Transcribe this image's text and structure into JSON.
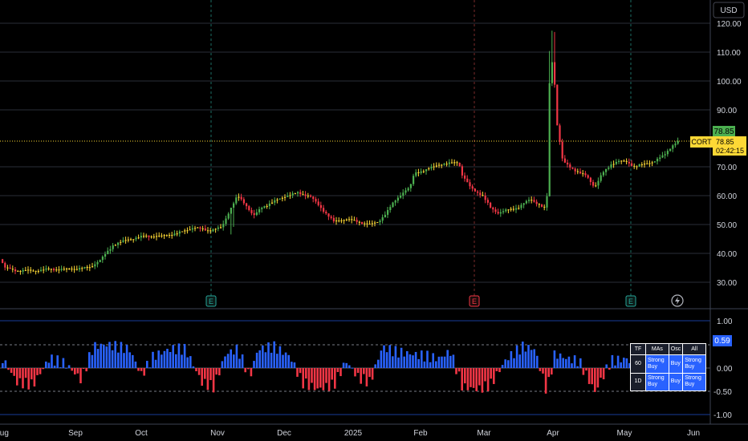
{
  "currency": "USD",
  "symbol": "CORT",
  "last_price": "78.85",
  "countdown": "02:42:15",
  "indicator_value": "0.59",
  "colors": {
    "up": "#4caf50",
    "down": "#f23645",
    "neutral": "#fdd835",
    "osc_up": "#2962ff",
    "osc_down": "#f23645",
    "price_tag": "#fdd835",
    "last_tag": "#4caf50",
    "earnings": "#26a69a",
    "earnings_neg": "#f23645"
  },
  "price_axis_labels": [
    "120.00",
    "110.00",
    "100.00",
    "90.00",
    "80.00",
    "70.00",
    "60.00",
    "50.00",
    "40.00",
    "30.00"
  ],
  "osc_axis_labels": [
    "1.00",
    "0.50",
    "0.00",
    "-0.50",
    "-1.00"
  ],
  "time_axis_labels": [
    "Aug",
    "Sep",
    "Oct",
    "Nov",
    "Dec",
    "2025",
    "Feb",
    "Mar",
    "Apr",
    "May",
    "Jun"
  ],
  "earnings_markers": [
    {
      "label": "E",
      "month": "Nov",
      "tone": "pos"
    },
    {
      "label": "E",
      "month": "Mar",
      "tone": "neg"
    },
    {
      "label": "E",
      "month": "May",
      "tone": "pos"
    }
  ],
  "flash_icon": "lightning-icon",
  "rating_table": {
    "headers": [
      "TF",
      "MAs",
      "Osc",
      "All"
    ],
    "rows": [
      {
        "tf": "60",
        "mas": "Strong Buy",
        "osc": "Buy",
        "all": "Strong Buy"
      },
      {
        "tf": "1D",
        "mas": "Strong Buy",
        "osc": "Buy",
        "all": "Strong Buy"
      }
    ]
  },
  "chart_data": {
    "type": "candlestick",
    "title": "",
    "ylim": [
      23,
      125
    ],
    "osc_ylim": [
      -1.2,
      1.15
    ],
    "price_path": [
      [
        0,
        38
      ],
      [
        5,
        35
      ],
      [
        20,
        34
      ],
      [
        40,
        34
      ],
      [
        60,
        34.5
      ],
      [
        80,
        34.5
      ],
      [
        110,
        35
      ],
      [
        125,
        38
      ],
      [
        140,
        43
      ],
      [
        160,
        45
      ],
      [
        180,
        46
      ],
      [
        200,
        46
      ],
      [
        220,
        47
      ],
      [
        240,
        49
      ],
      [
        260,
        48
      ],
      [
        275,
        49
      ],
      [
        285,
        55
      ],
      [
        295,
        60
      ],
      [
        305,
        57
      ],
      [
        315,
        53
      ],
      [
        325,
        56
      ],
      [
        340,
        58
      ],
      [
        355,
        60
      ],
      [
        370,
        61
      ],
      [
        385,
        60
      ],
      [
        395,
        57
      ],
      [
        405,
        54
      ],
      [
        415,
        51
      ],
      [
        430,
        52
      ],
      [
        445,
        51
      ],
      [
        460,
        50
      ],
      [
        470,
        51
      ],
      [
        480,
        54
      ],
      [
        490,
        58
      ],
      [
        500,
        61
      ],
      [
        510,
        63
      ],
      [
        515,
        68
      ],
      [
        530,
        69
      ],
      [
        545,
        71
      ],
      [
        555,
        71
      ],
      [
        570,
        72
      ],
      [
        575,
        67
      ],
      [
        585,
        63
      ],
      [
        600,
        60
      ],
      [
        610,
        56
      ],
      [
        620,
        54
      ],
      [
        630,
        55
      ],
      [
        645,
        56
      ],
      [
        660,
        59
      ],
      [
        670,
        57
      ],
      [
        680,
        55
      ],
      [
        684,
        104
      ],
      [
        688,
        108
      ],
      [
        693,
        85
      ],
      [
        700,
        72
      ],
      [
        710,
        70
      ],
      [
        720,
        68
      ],
      [
        730,
        67
      ],
      [
        740,
        63
      ],
      [
        750,
        68
      ],
      [
        760,
        71
      ],
      [
        770,
        72
      ],
      [
        780,
        72
      ],
      [
        790,
        70
      ],
      [
        800,
        71
      ],
      [
        815,
        72
      ],
      [
        825,
        74
      ],
      [
        835,
        77
      ],
      [
        844,
        78.85
      ]
    ],
    "osc_path": [
      [
        0,
        0.25
      ],
      [
        20,
        -0.3
      ],
      [
        40,
        -0.35
      ],
      [
        60,
        0.2
      ],
      [
        80,
        0.1
      ],
      [
        100,
        -0.25
      ],
      [
        115,
        0.45
      ],
      [
        130,
        0.5
      ],
      [
        160,
        0.4
      ],
      [
        175,
        -0.15
      ],
      [
        190,
        0.25
      ],
      [
        210,
        0.4
      ],
      [
        230,
        0.4
      ],
      [
        250,
        -0.3
      ],
      [
        265,
        -0.4
      ],
      [
        280,
        0.3
      ],
      [
        295,
        0.4
      ],
      [
        310,
        -0.2
      ],
      [
        320,
        0.4
      ],
      [
        340,
        0.45
      ],
      [
        360,
        0.25
      ],
      [
        375,
        -0.3
      ],
      [
        395,
        -0.45
      ],
      [
        415,
        -0.35
      ],
      [
        430,
        0.15
      ],
      [
        445,
        -0.2
      ],
      [
        460,
        -0.3
      ],
      [
        475,
        0.45
      ],
      [
        490,
        0.35
      ],
      [
        510,
        0.3
      ],
      [
        530,
        0.25
      ],
      [
        545,
        0.2
      ],
      [
        560,
        0.35
      ],
      [
        575,
        -0.4
      ],
      [
        595,
        -0.45
      ],
      [
        610,
        -0.35
      ],
      [
        630,
        0.2
      ],
      [
        650,
        0.45
      ],
      [
        665,
        0.4
      ],
      [
        680,
        -0.5
      ],
      [
        690,
        0.3
      ],
      [
        705,
        0.2
      ],
      [
        720,
        0.15
      ],
      [
        740,
        -0.5
      ],
      [
        760,
        0.15
      ],
      [
        780,
        0.2
      ],
      [
        800,
        -0.15
      ],
      [
        820,
        0.35
      ],
      [
        840,
        0.5
      ],
      [
        844,
        0.59
      ]
    ]
  }
}
